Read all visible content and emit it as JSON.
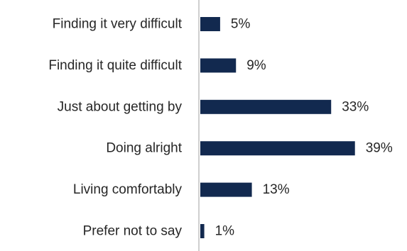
{
  "chart_data": {
    "type": "bar",
    "orientation": "horizontal",
    "categories": [
      "Finding it very difficult",
      "Finding it quite difficult",
      "Just about getting by",
      "Doing alright",
      "Living comfortably",
      "Prefer not to say"
    ],
    "values": [
      5,
      9,
      33,
      39,
      13,
      1
    ],
    "value_labels": [
      "5%",
      "9%",
      "33%",
      "39%",
      "13%",
      "1%"
    ],
    "unit": "%",
    "title": "",
    "xlabel": "",
    "ylabel": "",
    "xlim": [
      0,
      41.2
    ],
    "grid": false,
    "legend": "none",
    "colors": {
      "bar": "#12294f",
      "axis": "#bfbfbf",
      "text": "#262626"
    }
  }
}
